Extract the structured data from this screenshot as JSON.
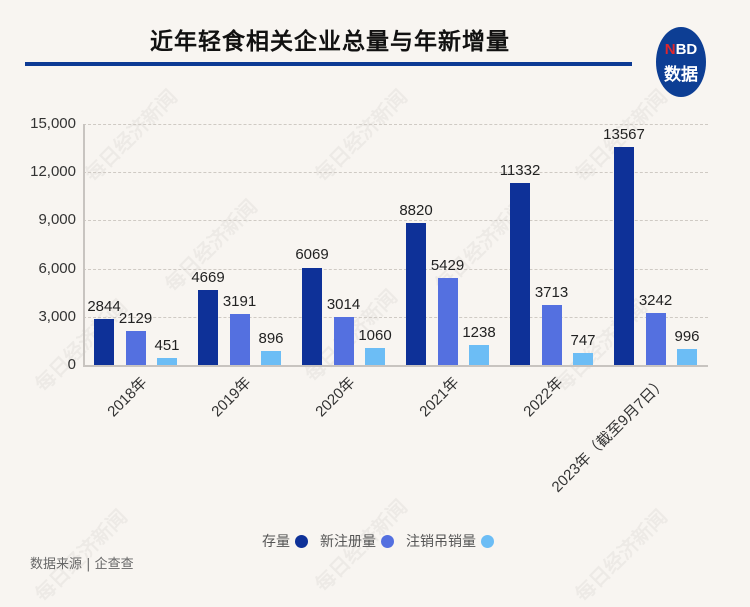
{
  "header": {
    "title": "近年轻食相关企业总量与年新增量",
    "logo_n": "N",
    "logo_bd": "BD",
    "logo_sub": "数据"
  },
  "watermark_text": "每日经济新闻",
  "source": "数据来源 | 企查查",
  "colors": {
    "stock": "#0e3198",
    "new_registered": "#5470e0",
    "cancelled": "#6cbdf5",
    "title_rule": "#0d3a94"
  },
  "chart_data": {
    "type": "bar",
    "title": "近年轻食相关企业总量与年新增量",
    "xlabel": "",
    "ylabel": "",
    "ylim": [
      0,
      15000
    ],
    "yticks": [
      "0",
      "3,000",
      "6,000",
      "9,000",
      "12,000",
      "15,000"
    ],
    "grid": true,
    "legend_position": "bottom",
    "categories": [
      "2018年",
      "2019年",
      "2020年",
      "2021年",
      "2022年",
      "2023年（截至9月7日）"
    ],
    "series": [
      {
        "name": "存量",
        "values": [
          2844,
          4669,
          6069,
          8820,
          11332,
          13567
        ]
      },
      {
        "name": "新注册量",
        "values": [
          2129,
          3191,
          3014,
          5429,
          3713,
          3242
        ]
      },
      {
        "name": "注销吊销量",
        "values": [
          451,
          896,
          1060,
          1238,
          747,
          996
        ]
      }
    ]
  },
  "legend": [
    {
      "label": "存量"
    },
    {
      "label": "新注册量"
    },
    {
      "label": "注销吊销量"
    }
  ]
}
